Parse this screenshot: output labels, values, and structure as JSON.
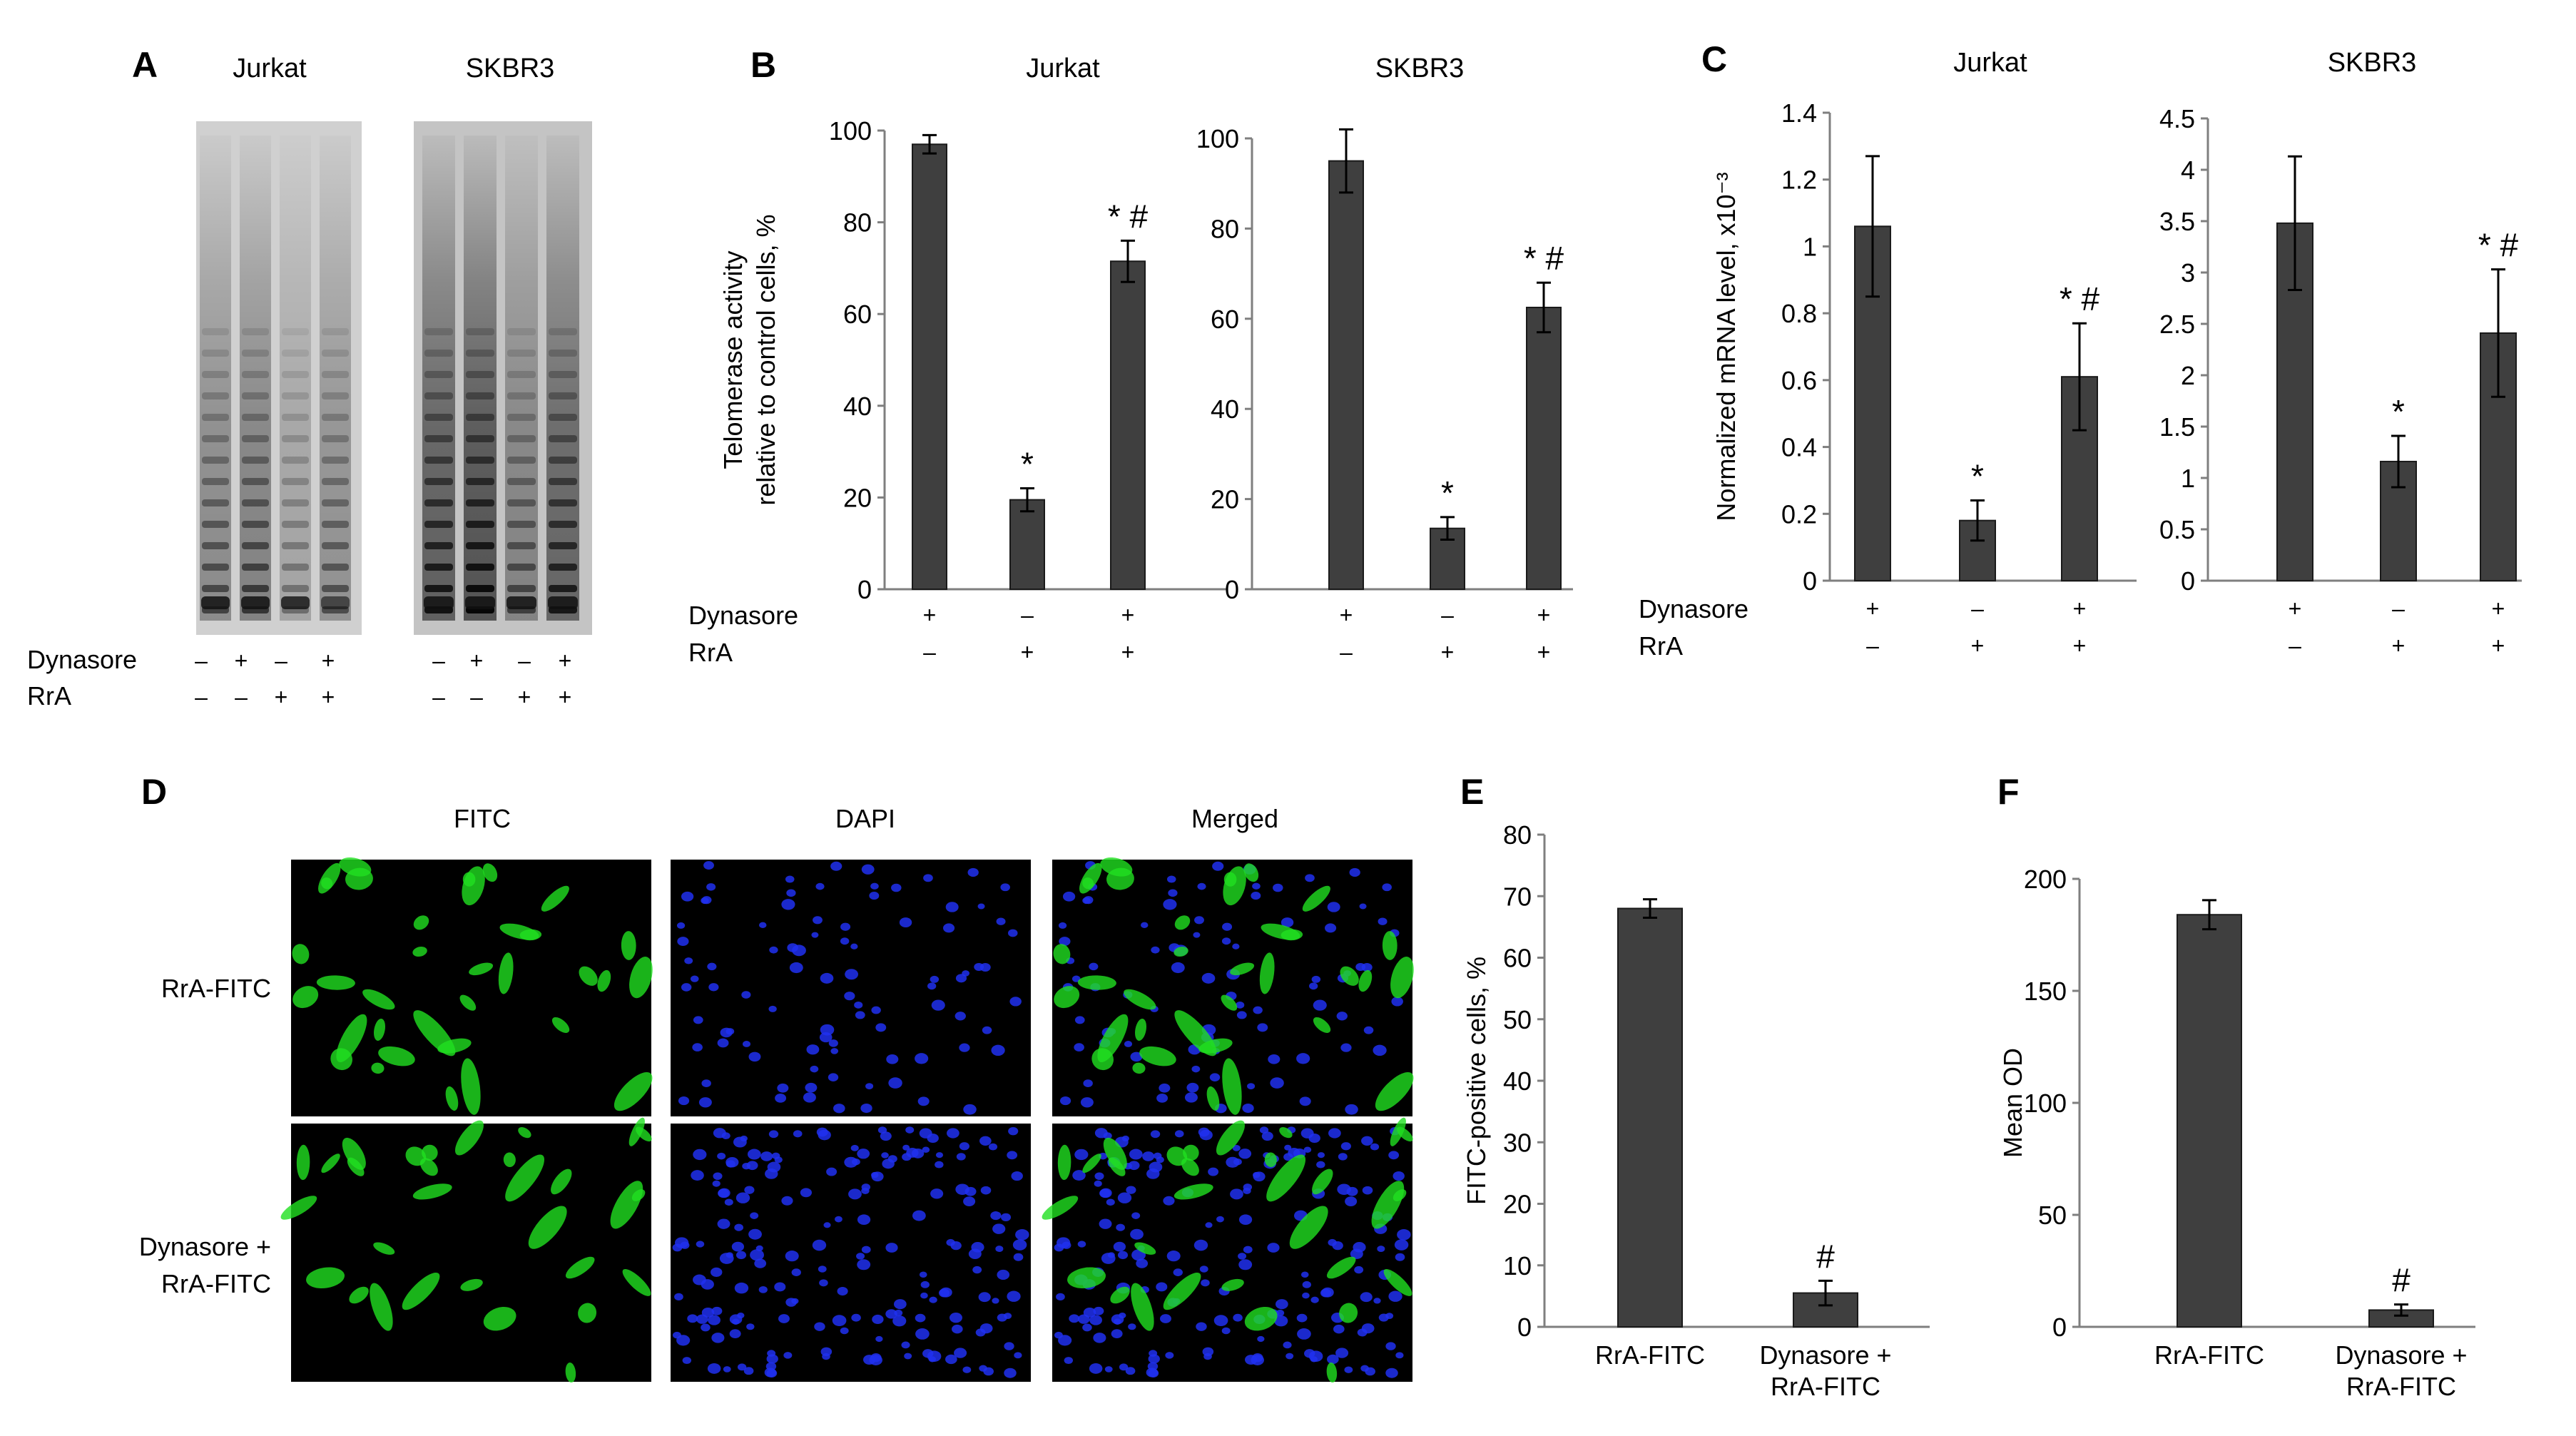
{
  "panels": {
    "A": {
      "letter": "A",
      "blots": [
        {
          "title": "Jurkat",
          "lanes": [
            {
              "intensity": 0.55,
              "bottom_band": 1.0
            },
            {
              "intensity": 0.62,
              "bottom_band": 1.0
            },
            {
              "intensity": 0.35,
              "bottom_band": 0.95
            },
            {
              "intensity": 0.5,
              "bottom_band": 0.7
            }
          ]
        },
        {
          "title": "SKBR3",
          "lanes": [
            {
              "intensity": 0.85,
              "bottom_band": 1.0
            },
            {
              "intensity": 0.95,
              "bottom_band": 1.0
            },
            {
              "intensity": 0.55,
              "bottom_band": 1.0
            },
            {
              "intensity": 0.8,
              "bottom_band": 1.0
            }
          ]
        }
      ],
      "row_labels": [
        "Dynasore",
        "RrA"
      ],
      "signs": [
        [
          "–",
          "+",
          "–",
          "+",
          "–",
          "+",
          "–",
          "+"
        ],
        [
          "–",
          "–",
          "+",
          "+",
          "–",
          "–",
          "+",
          "+"
        ]
      ]
    },
    "B": {
      "letter": "B"
    },
    "C": {
      "letter": "C"
    },
    "D": {
      "letter": "D",
      "column_titles": [
        "FITC",
        "DAPI",
        "Merged"
      ],
      "row_labels": [
        [
          "RrA-FITC"
        ],
        [
          "Dynasore +",
          "RrA-FITC"
        ]
      ],
      "colors": {
        "fitc": "#20e020",
        "dapi": "#2030f0",
        "background": "#000000"
      }
    },
    "E": {
      "letter": "E"
    },
    "F": {
      "letter": "F"
    }
  },
  "condition_table": {
    "row_labels": [
      "Dynasore",
      "RrA"
    ],
    "signs": [
      [
        "+",
        "–",
        "+"
      ],
      [
        "–",
        "+",
        "+"
      ]
    ]
  },
  "colors": {
    "bar": "#3f3f3f",
    "axis": "#7f7f7f"
  },
  "chart_data": [
    {
      "id": "B-jurkat",
      "type": "bar",
      "title": "Jurkat",
      "ylabel": [
        "Telomerase activity",
        "relative to control cells, %"
      ],
      "ylim": [
        0,
        100
      ],
      "yticks": [
        "0",
        "20",
        "40",
        "60",
        "80",
        "100"
      ],
      "values": [
        97,
        19.5,
        71.5
      ],
      "errors": [
        2,
        2.5,
        4.5
      ],
      "annotations": [
        "",
        "*",
        "* #"
      ]
    },
    {
      "id": "B-skbr3",
      "type": "bar",
      "title": "SKBR3",
      "ylim": [
        0,
        100
      ],
      "yticks": [
        "0",
        "20",
        "40",
        "60",
        "80",
        "100"
      ],
      "values": [
        95,
        13.5,
        62.5
      ],
      "errors": [
        7,
        2.5,
        5.5
      ],
      "annotations": [
        "",
        "*",
        "* #"
      ]
    },
    {
      "id": "C-jurkat",
      "type": "bar",
      "title": "Jurkat",
      "ylabel": "Normalized mRNA level, x10⁻³",
      "ylim": [
        0,
        1.4
      ],
      "yticks": [
        "0",
        "0.2",
        "0.4",
        "0.6",
        "0.8",
        "1",
        "1.2",
        "1.4"
      ],
      "values": [
        1.06,
        0.18,
        0.61
      ],
      "errors": [
        0.21,
        0.06,
        0.16
      ],
      "annotations": [
        "",
        "*",
        "* #"
      ]
    },
    {
      "id": "C-skbr3",
      "type": "bar",
      "title": "SKBR3",
      "ylim": [
        0,
        4.5
      ],
      "yticks": [
        "0",
        "0.5",
        "1",
        "1.5",
        "2",
        "2.5",
        "3",
        "3.5",
        "4",
        "4.5"
      ],
      "values": [
        3.48,
        1.16,
        2.41
      ],
      "errors": [
        0.65,
        0.25,
        0.62
      ],
      "annotations": [
        "",
        "*",
        "* #"
      ]
    },
    {
      "id": "E",
      "type": "bar",
      "ylabel": "FITC-positive cells, %",
      "ylim": [
        0,
        80
      ],
      "yticks": [
        "0",
        "10",
        "20",
        "30",
        "40",
        "50",
        "60",
        "70",
        "80"
      ],
      "categories": [
        [
          "RrA-FITC"
        ],
        [
          "Dynasore +",
          "RrA-FITC"
        ]
      ],
      "values": [
        68,
        5.5
      ],
      "errors": [
        1.5,
        2
      ],
      "annotations": [
        "",
        "#"
      ]
    },
    {
      "id": "F",
      "type": "bar",
      "ylabel": "Mean OD",
      "ylim": [
        0,
        200
      ],
      "yticks": [
        "0",
        "50",
        "100",
        "150",
        "200"
      ],
      "categories": [
        [
          "RrA-FITC"
        ],
        [
          "Dynasore +",
          "RrA-FITC"
        ]
      ],
      "values": [
        184,
        7.5
      ],
      "errors": [
        6.5,
        2.5
      ],
      "annotations": [
        "",
        "#"
      ]
    }
  ]
}
